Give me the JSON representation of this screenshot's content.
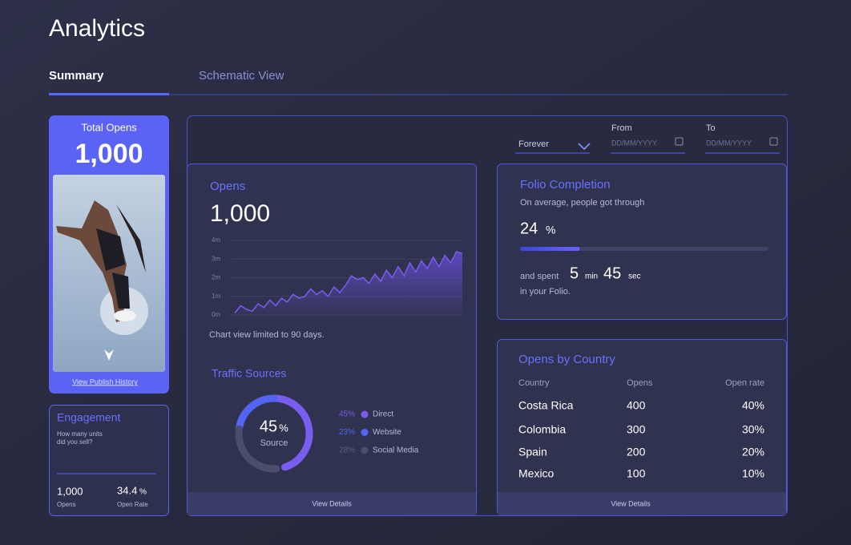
{
  "header": {
    "title": "Analytics"
  },
  "tabs": [
    "Summary",
    "Schematic View"
  ],
  "total_opens": {
    "label": "Total Opens",
    "value": "1,000",
    "link": "View Publish History"
  },
  "engagement": {
    "title": "Engagement",
    "question": [
      "How many units",
      "did you sell?"
    ],
    "opens_value": "1,000",
    "opens_label": "Opens",
    "rate_value": "34.4",
    "rate_unit": "%",
    "rate_label": "Open Rate"
  },
  "filters": {
    "period": "Forever",
    "from_label": "From",
    "from_placeholder": "DD/MM/YYYY",
    "to_label": "To",
    "to_placeholder": "DD/MM/YYYY"
  },
  "opens": {
    "title": "Opens",
    "value": "1,000",
    "note": "Chart view limited to 90 days.",
    "chart": {
      "type": "line",
      "color": "#7b5cf0",
      "grid": true,
      "ylim": [
        0,
        4
      ],
      "yticks": [
        {
          "value": 0,
          "label": "0m"
        },
        {
          "value": 1,
          "label": "1m"
        },
        {
          "value": 2,
          "label": "2m"
        },
        {
          "value": 3,
          "label": "3m"
        },
        {
          "value": 4,
          "label": "4m"
        }
      ],
      "values": [
        0.1,
        0.5,
        0.3,
        0.2,
        0.6,
        0.4,
        0.8,
        0.5,
        0.9,
        0.7,
        1.1,
        0.9,
        1.0,
        1.4,
        1.1,
        1.3,
        1.0,
        1.5,
        1.2,
        1.6,
        2.1,
        1.9,
        2.0,
        1.7,
        2.2,
        1.8,
        2.4,
        2.0,
        2.6,
        2.1,
        2.8,
        2.3,
        2.9,
        2.5,
        3.1,
        2.6,
        3.2,
        2.8,
        3.4,
        3.3
      ]
    }
  },
  "traffic": {
    "title": "Traffic Sources",
    "center_value": "45",
    "center_unit": "%",
    "center_label": "Source",
    "footer": "View Details",
    "chart": {
      "type": "donut",
      "categories": [
        "Direct",
        "Website",
        "Social Media"
      ],
      "values": [
        45,
        23,
        28
      ],
      "value_labels": [
        "45%",
        "23%",
        "28%"
      ],
      "colors": [
        "#7b5cf0",
        "#5563f2",
        "#4a4d6c"
      ]
    }
  },
  "folio": {
    "title": "Folio Completion",
    "subtitle": "On average, people got through",
    "percent": 24,
    "percent_unit": "%",
    "spent_label": "and spent",
    "minutes": 5,
    "min_unit": "min",
    "seconds": 45,
    "sec_unit": "sec",
    "suffix": "in your Folio."
  },
  "countries": {
    "title": "Opens by Country",
    "columns": [
      "Country",
      "Opens",
      "Open rate"
    ],
    "rows": [
      [
        "Costa Rica",
        400,
        "40%"
      ],
      [
        "Colombia",
        300,
        "30%"
      ],
      [
        "Spain",
        200,
        "20%"
      ],
      [
        "Mexico",
        100,
        "10%"
      ]
    ],
    "footer": "View Details"
  }
}
